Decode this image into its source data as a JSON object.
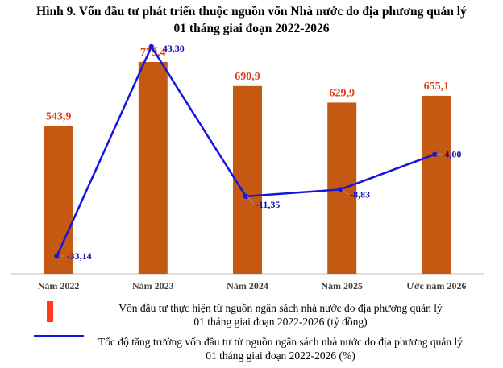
{
  "title": {
    "line1": "Hình 9. Vốn đầu tư phát triển thuộc nguồn vốn Nhà nước do địa phương quản lý",
    "line2": "01 tháng giai đoạn 2022-2026"
  },
  "colors": {
    "bar": "#c65911",
    "bar_label": "#e2401b",
    "line": "#1515e0",
    "line_label": "#1010c0",
    "legend_bar": "#ff3b1f",
    "axis": "#bfbfbf"
  },
  "chart_data": {
    "type": "bar",
    "categories": [
      "Năm 2022",
      "Năm 2023",
      "Năm 2024",
      "Năm 2025",
      "Ước năm 2026"
    ],
    "series": [
      {
        "name": "Vốn đầu tư thực hiện từ nguồn ngân sách nhà nước do địa phương quản lý 01 tháng giai đoạn 2022-2026 (tỷ đồng)",
        "type": "bar",
        "values": [
          543.9,
          779.4,
          690.9,
          629.9,
          655.1
        ],
        "labels": [
          "543,9",
          "779,4",
          "690,9",
          "629,9",
          "655,1"
        ]
      },
      {
        "name": "Tốc độ tăng trưởng vốn đầu tư từ nguồn ngân sách nhà nước do địa phương quản lý 01 tháng giai đoạn 2022-2026 (%)",
        "type": "line",
        "values": [
          -33.14,
          43.3,
          -11.35,
          -8.83,
          4.0
        ],
        "labels": [
          "-33,14",
          "43,30",
          "-11,35",
          "-8,83",
          "4,00"
        ]
      }
    ],
    "grid": false,
    "legend_position": "bottom"
  },
  "legend": [
    {
      "marker": "bar",
      "line1": "Vốn đầu tư thực hiện từ nguồn ngân sách nhà nước do địa phương quản lý",
      "line2": "01 tháng giai đoạn 2022-2026 (tỷ đồng)"
    },
    {
      "marker": "line",
      "line1": "Tốc độ tăng trưởng vốn đầu tư từ nguồn ngân sách nhà nước do địa phương quản lý",
      "line2": "01 tháng giai đoạn 2022-2026 (%)"
    }
  ]
}
